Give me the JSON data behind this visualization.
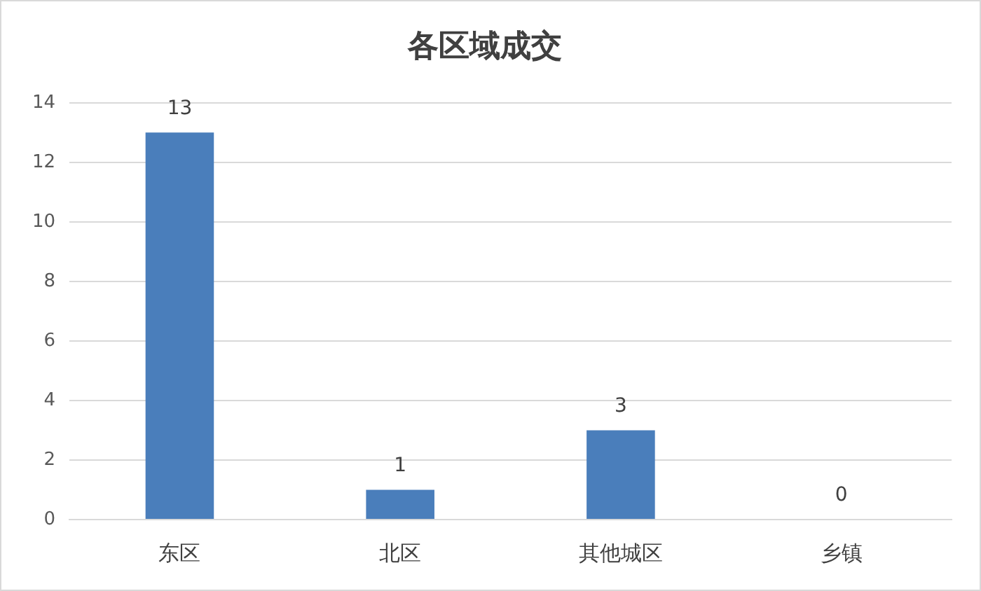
{
  "chart_data": {
    "type": "bar",
    "title": "各区域成交",
    "categories": [
      "东区",
      "北区",
      "其他城区",
      "乡镇"
    ],
    "values": [
      13,
      1,
      3,
      0
    ],
    "color": "#4a7ebb",
    "ylim": [
      0,
      14
    ],
    "yticks": [
      0,
      2,
      4,
      6,
      8,
      10,
      12,
      14
    ],
    "grid": "y",
    "data_labels": true,
    "legend": false
  }
}
